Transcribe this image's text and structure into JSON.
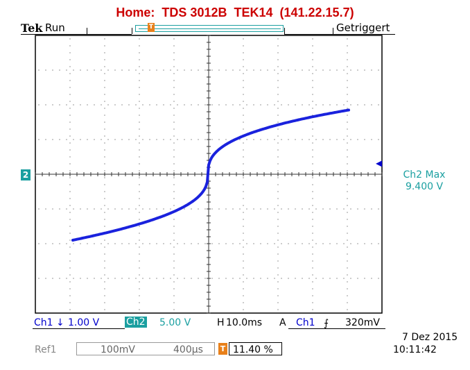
{
  "title": "Home:  TDS 3012B  TEK14  (141.22.15.7)",
  "header": {
    "brand": "Tek",
    "run_state": "Run",
    "trigger_status": "Getriggert"
  },
  "markers": {
    "channel": "2",
    "trigger": "T"
  },
  "measurement": {
    "label": "Ch2 Max",
    "value": "9.400 V"
  },
  "status_bar": {
    "ch1_tag": "Ch1",
    "ch1_coupling_symbol": "↓",
    "ch1_scale": "1.00 V",
    "ch2_tag": "Ch2",
    "ch2_scale": "5.00 V",
    "horiz_tag": "H",
    "horiz_scale": "10.0ms",
    "trigger_mode": "A",
    "trigger_source": "Ch1",
    "trigger_slope_symbol": "⨍",
    "trigger_level": "320mV"
  },
  "ref_bar": {
    "tag": "Ref1",
    "volts_div": "100mV",
    "time_div": "400μs",
    "trigger_position": "11.40 %"
  },
  "datetime": {
    "date": "7 Dez  2015",
    "time": "10:11:42"
  },
  "colors": {
    "title": "#cc0000",
    "ch1": "#0000cc",
    "ch2": "#1a9fa0",
    "trigger": "#e8801a",
    "trace": "#1a22dd"
  }
}
